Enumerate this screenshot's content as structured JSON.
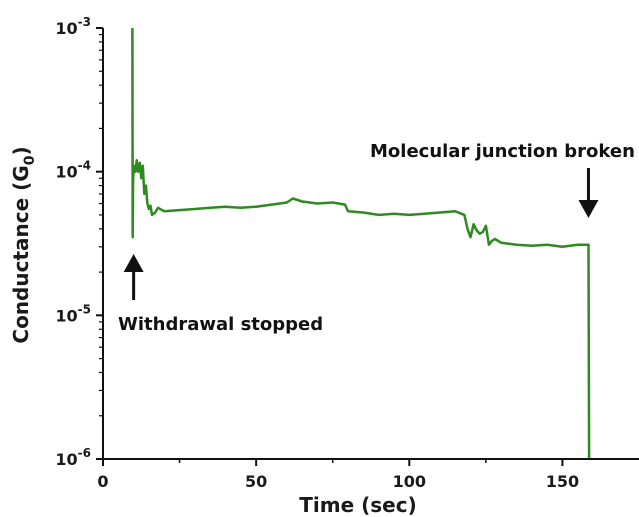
{
  "chart_data": {
    "type": "line",
    "title": "",
    "xlabel": "Time (sec)",
    "ylabel": "Conductance (G",
    "ylabel_sub": "0",
    "ylabel_close": ")",
    "xlim": [
      0,
      175
    ],
    "ylim": [
      1e-06,
      0.001
    ],
    "yscale": "log",
    "grid": false,
    "xticks": [
      {
        "value": 0,
        "label": "0"
      },
      {
        "value": 50,
        "label": "50"
      },
      {
        "value": 100,
        "label": "100"
      },
      {
        "value": 150,
        "label": "150"
      }
    ],
    "yticks": [
      {
        "value": 0.001,
        "base": "10",
        "exp": "-3"
      },
      {
        "value": 0.0001,
        "base": "10",
        "exp": "-4"
      },
      {
        "value": 1e-05,
        "base": "10",
        "exp": "-5"
      },
      {
        "value": 1e-06,
        "base": "10",
        "exp": "-6"
      }
    ],
    "series": [
      {
        "color": "#2d8a1f",
        "x": [
          9.6,
          9.7,
          9.8,
          10,
          10.3,
          10.6,
          11,
          11.5,
          12,
          12.5,
          13,
          13.5,
          14,
          14.5,
          15,
          15.5,
          16,
          17,
          18,
          20,
          25,
          30,
          35,
          40,
          45,
          50,
          55,
          60,
          62,
          65,
          70,
          75,
          79,
          80,
          85,
          90,
          95,
          100,
          105,
          110,
          115,
          118,
          119,
          120,
          121,
          122,
          123,
          124,
          125,
          126,
          127,
          128,
          130,
          135,
          140,
          145,
          150,
          155,
          158.5,
          158.7
        ],
        "y": [
          0.001,
          3.5e-05,
          8e-05,
          0.00011,
          0.000105,
          0.0001,
          0.00012,
          0.0001,
          0.000115,
          9e-05,
          0.00011,
          7e-05,
          8e-05,
          6e-05,
          5.5e-05,
          5.8e-05,
          5e-05,
          5.2e-05,
          5.6e-05,
          5.3e-05,
          5.4e-05,
          5.5e-05,
          5.6e-05,
          5.7e-05,
          5.6e-05,
          5.7e-05,
          5.9e-05,
          6.1e-05,
          6.5e-05,
          6.2e-05,
          6e-05,
          6.1e-05,
          5.9e-05,
          5.3e-05,
          5.2e-05,
          5e-05,
          5.1e-05,
          5e-05,
          5.1e-05,
          5.2e-05,
          5.3e-05,
          5e-05,
          4e-05,
          3.5e-05,
          4.3e-05,
          3.9e-05,
          3.7e-05,
          3.8e-05,
          4.2e-05,
          3.1e-05,
          3.3e-05,
          3.4e-05,
          3.2e-05,
          3.1e-05,
          3.05e-05,
          3.1e-05,
          3e-05,
          3.1e-05,
          3.1e-05,
          1e-06
        ]
      }
    ],
    "annotations": [
      {
        "text": "Withdrawal stopped",
        "arrow_x": 10,
        "arrow_direction": "up"
      },
      {
        "text": "Molecular junction broken",
        "arrow_x": 158.5,
        "arrow_direction": "down"
      }
    ]
  }
}
